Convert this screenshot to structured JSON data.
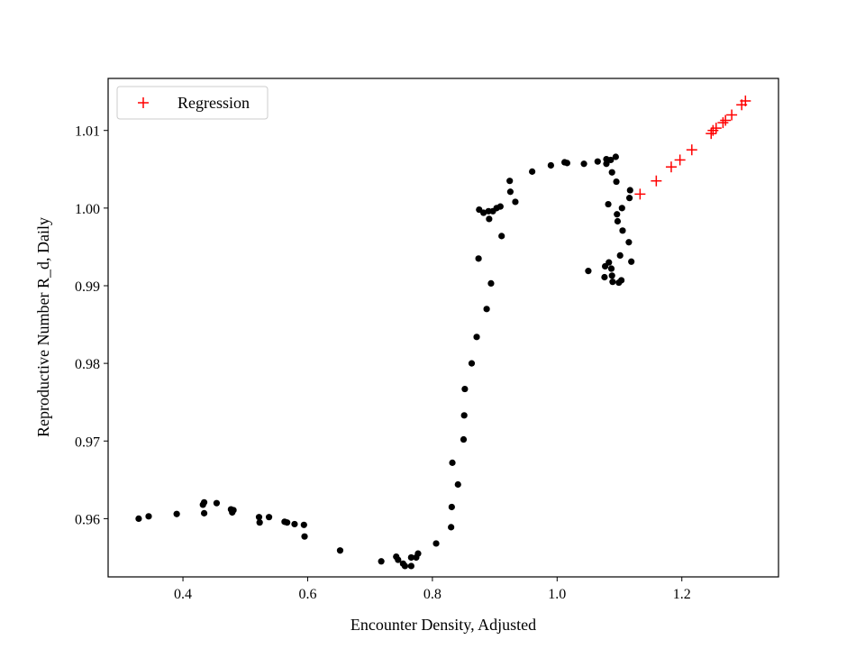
{
  "chart_data": {
    "type": "scatter",
    "title": "",
    "xlabel": "Encounter Density, Adjusted",
    "ylabel": "Reproductive Number R_d, Daily",
    "xlim": [
      0.28,
      1.355
    ],
    "ylim": [
      0.9525,
      1.0167
    ],
    "xticks": [
      0.4,
      0.6,
      0.8,
      1.0,
      1.2
    ],
    "xtick_labels": [
      "0.4",
      "0.6",
      "0.8",
      "1.0",
      "1.2"
    ],
    "yticks": [
      0.96,
      0.97,
      0.98,
      0.99,
      1.0,
      1.01
    ],
    "ytick_labels": [
      "0.96",
      "0.97",
      "0.98",
      "0.99",
      "1.00",
      "1.01"
    ],
    "grid": false,
    "legend": {
      "placement": "upper-left",
      "entries": [
        "Regression"
      ]
    },
    "series": [
      {
        "marker": "dot",
        "color": "#000000",
        "points": [
          [
            0.329,
            0.96
          ],
          [
            0.345,
            0.9603
          ],
          [
            0.39,
            0.9606
          ],
          [
            0.432,
            0.9618
          ],
          [
            0.434,
            0.9621
          ],
          [
            0.434,
            0.9607
          ],
          [
            0.454,
            0.962
          ],
          [
            0.477,
            0.9612
          ],
          [
            0.479,
            0.9608
          ],
          [
            0.481,
            0.9611
          ],
          [
            0.522,
            0.9602
          ],
          [
            0.523,
            0.9595
          ],
          [
            0.538,
            0.9602
          ],
          [
            0.563,
            0.9596
          ],
          [
            0.567,
            0.9595
          ],
          [
            0.579,
            0.9593
          ],
          [
            0.594,
            0.9592
          ],
          [
            0.595,
            0.9577
          ],
          [
            0.652,
            0.9559
          ],
          [
            0.718,
            0.9545
          ],
          [
            0.742,
            0.9551
          ],
          [
            0.745,
            0.9547
          ],
          [
            0.753,
            0.9542
          ],
          [
            0.756,
            0.9539
          ],
          [
            0.766,
            0.9539
          ],
          [
            0.766,
            0.955
          ],
          [
            0.774,
            0.955
          ],
          [
            0.777,
            0.9555
          ],
          [
            0.806,
            0.9568
          ],
          [
            0.83,
            0.9589
          ],
          [
            0.831,
            0.9615
          ],
          [
            0.832,
            0.9672
          ],
          [
            0.841,
            0.9644
          ],
          [
            0.85,
            0.9702
          ],
          [
            0.851,
            0.9733
          ],
          [
            0.852,
            0.9767
          ],
          [
            0.863,
            0.98
          ],
          [
            0.871,
            0.9834
          ],
          [
            0.874,
            0.9935
          ],
          [
            0.875,
            0.9998
          ],
          [
            0.882,
            0.9994
          ],
          [
            0.887,
            0.987
          ],
          [
            0.89,
            0.9996
          ],
          [
            0.891,
            0.9986
          ],
          [
            0.894,
            0.9903
          ],
          [
            0.897,
            0.9996
          ],
          [
            0.903,
            1.0
          ],
          [
            0.909,
            1.0002
          ],
          [
            0.911,
            0.9964
          ],
          [
            0.924,
            1.0035
          ],
          [
            0.925,
            1.0021
          ],
          [
            0.933,
            1.0008
          ],
          [
            0.96,
            1.0047
          ],
          [
            0.99,
            1.0055
          ],
          [
            1.012,
            1.0059
          ],
          [
            1.016,
            1.0058
          ],
          [
            1.043,
            1.0057
          ],
          [
            1.05,
            0.9919
          ],
          [
            1.065,
            1.006
          ],
          [
            1.076,
            0.9911
          ],
          [
            1.077,
            0.9925
          ],
          [
            1.079,
            1.0063
          ],
          [
            1.079,
            1.0057
          ],
          [
            1.082,
            1.0005
          ],
          [
            1.083,
            0.993
          ],
          [
            1.086,
            1.0062
          ],
          [
            1.087,
            0.9922
          ],
          [
            1.088,
            0.9913
          ],
          [
            1.088,
            1.0046
          ],
          [
            1.089,
            0.9905
          ],
          [
            1.094,
            1.0066
          ],
          [
            1.095,
            1.0034
          ],
          [
            1.096,
            0.9992
          ],
          [
            1.097,
            0.9983
          ],
          [
            1.099,
            0.9904
          ],
          [
            1.101,
            0.9939
          ],
          [
            1.103,
            0.9907
          ],
          [
            1.104,
            1.0
          ],
          [
            1.105,
            0.9971
          ],
          [
            1.115,
            0.9956
          ],
          [
            1.116,
            1.0013
          ],
          [
            1.117,
            1.0023
          ],
          [
            1.119,
            0.9931
          ]
        ]
      },
      {
        "name": "Regression",
        "marker": "plus",
        "color": "#ff0000",
        "points": [
          [
            1.133,
            1.0018
          ],
          [
            1.159,
            1.0035
          ],
          [
            1.183,
            1.0053
          ],
          [
            1.197,
            1.0062
          ],
          [
            1.216,
            1.0075
          ],
          [
            1.247,
            1.0096
          ],
          [
            1.25,
            1.01
          ],
          [
            1.255,
            1.0103
          ],
          [
            1.266,
            1.011
          ],
          [
            1.27,
            1.0113
          ],
          [
            1.28,
            1.012
          ],
          [
            1.296,
            1.0133
          ],
          [
            1.302,
            1.0138
          ]
        ]
      }
    ]
  }
}
